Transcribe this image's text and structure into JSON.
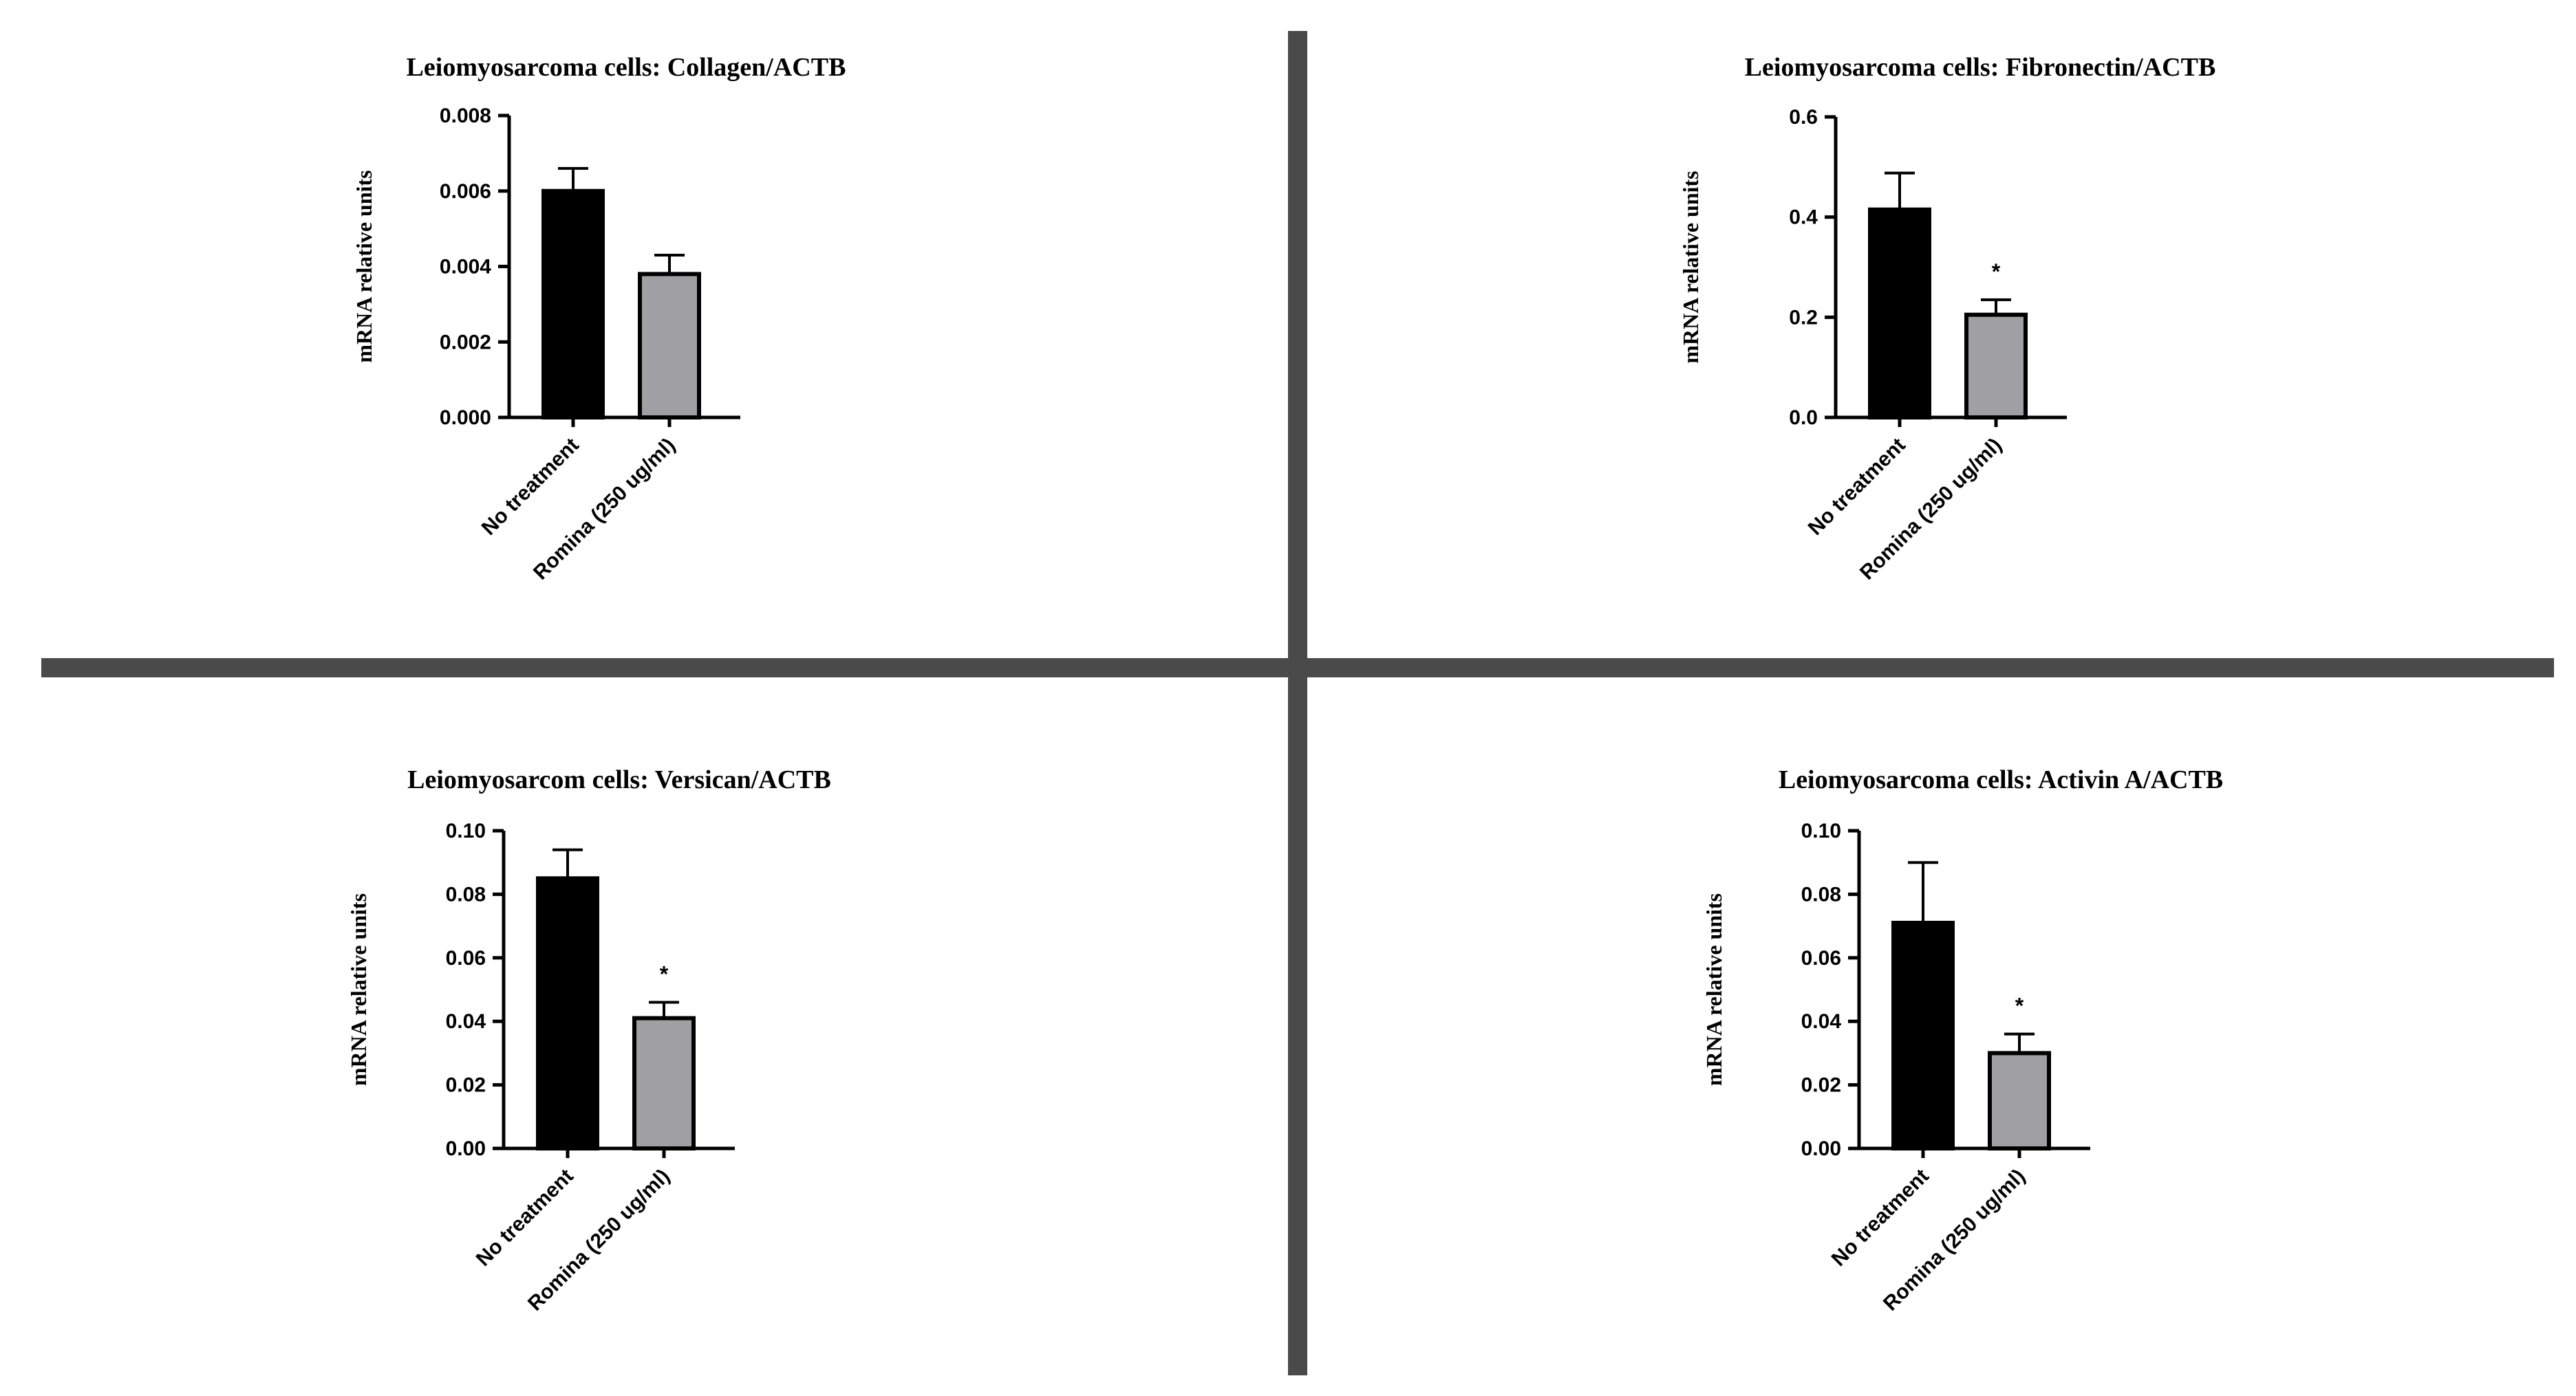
{
  "colors": {
    "no_treatment": "#000000",
    "romina": "#a0a0a4",
    "divider": "#4a4a4a"
  },
  "chart_data": [
    {
      "type": "bar",
      "title": "Leiomyosarcoma cells: Collagen/ACTB",
      "ylabel": "mRNA relative units",
      "xlabel": "",
      "categories": [
        "No treatment",
        "Romina (250 ug/ml)"
      ],
      "values": [
        0.006,
        0.0038
      ],
      "errors": [
        0.0006,
        0.0005
      ],
      "significance": [
        "",
        ""
      ],
      "ylim": [
        0,
        0.008
      ],
      "yticks": [
        0,
        0.002,
        0.004,
        0.006,
        0.008
      ],
      "ytick_labels": [
        "0.000",
        "0.002",
        "0.004",
        "0.006",
        "0.008"
      ]
    },
    {
      "type": "bar",
      "title": "Leiomyosarcoma cells: Fibronectin/ACTB",
      "ylabel": "mRNA relative units",
      "xlabel": "",
      "categories": [
        "No treatment",
        "Romina (250 ug/ml)"
      ],
      "values": [
        0.415,
        0.205
      ],
      "errors": [
        0.073,
        0.03
      ],
      "significance": [
        "",
        "*"
      ],
      "ylim": [
        0,
        0.6
      ],
      "yticks": [
        0,
        0.2,
        0.4,
        0.6
      ],
      "ytick_labels": [
        "0.0",
        "0.2",
        "0.4",
        "0.6"
      ]
    },
    {
      "type": "bar",
      "title": "Leiomyosarcom cells: Versican/ACTB",
      "ylabel": "mRNA relative units",
      "xlabel": "",
      "categories": [
        "No treatment",
        "Romina (250 ug/ml)"
      ],
      "values": [
        0.085,
        0.041
      ],
      "errors": [
        0.009,
        0.005
      ],
      "significance": [
        "",
        "*"
      ],
      "ylim": [
        0,
        0.1
      ],
      "yticks": [
        0,
        0.02,
        0.04,
        0.06,
        0.08,
        0.1
      ],
      "ytick_labels": [
        "0.00",
        "0.02",
        "0.04",
        "0.06",
        "0.08",
        "0.10"
      ]
    },
    {
      "type": "bar",
      "title": "Leiomyosarcoma cells: Activin A/ACTB",
      "ylabel": "mRNA relative units",
      "xlabel": "",
      "categories": [
        "No treatment",
        "Romina (250 ug/ml)"
      ],
      "values": [
        0.071,
        0.03
      ],
      "errors": [
        0.019,
        0.006
      ],
      "significance": [
        "",
        "*"
      ],
      "ylim": [
        0,
        0.1
      ],
      "yticks": [
        0,
        0.02,
        0.04,
        0.06,
        0.08,
        0.1
      ],
      "ytick_labels": [
        "0.00",
        "0.02",
        "0.04",
        "0.06",
        "0.08",
        "0.10"
      ]
    }
  ]
}
